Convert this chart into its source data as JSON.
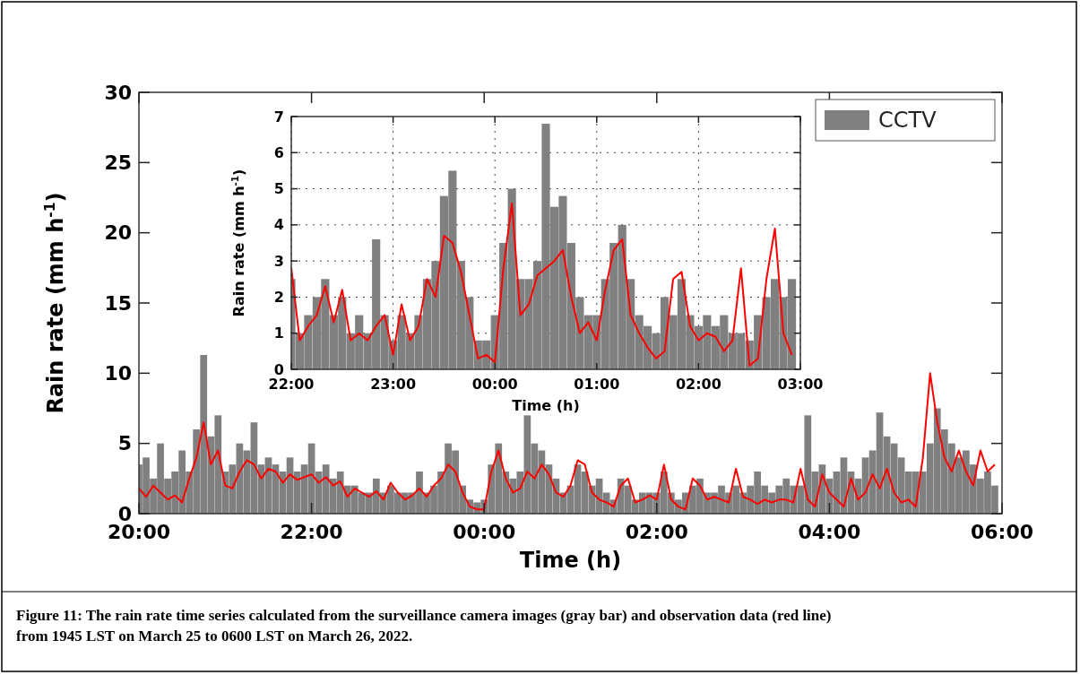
{
  "chart_data": [
    {
      "type": "bar",
      "xlabel": "Time (h)",
      "ylabel": "Rain rate (mm h$^{-1}$)",
      "xlim": [
        "2022-03-25T20:00",
        "2022-03-26T06:00"
      ],
      "ylim": [
        0,
        30
      ],
      "xticks": [
        {
          "value": "2022-03-25T20:00",
          "label": "20:00"
        },
        {
          "value": "2022-03-25T22:00",
          "label": "22:00"
        },
        {
          "value": "2022-03-26T00:00",
          "label": "00:00"
        },
        {
          "value": "2022-03-26T02:00",
          "label": "02:00"
        },
        {
          "value": "2022-03-26T04:00",
          "label": "04:00"
        },
        {
          "value": "2022-03-26T06:00",
          "label": "06:00"
        }
      ],
      "yticks": [
        0,
        5,
        10,
        15,
        20,
        25,
        30
      ],
      "legend": "top right",
      "annotations": [
        "Figure 11: The rain rate time series calculated from the surveillance camera images (gray bar) and observation data (red line) from 1945 LST on March 25 to 0600 LST on March 26, 2022."
      ],
      "x": [
        "2022-03-25T20:00",
        "2022-03-25T20:05",
        "2022-03-25T20:10",
        "2022-03-25T20:15",
        "2022-03-25T20:20",
        "2022-03-25T20:25",
        "2022-03-25T20:30",
        "2022-03-25T20:35",
        "2022-03-25T20:40",
        "2022-03-25T20:45",
        "2022-03-25T20:50",
        "2022-03-25T20:55",
        "2022-03-25T21:00",
        "2022-03-25T21:05",
        "2022-03-25T21:10",
        "2022-03-25T21:15",
        "2022-03-25T21:20",
        "2022-03-25T21:25",
        "2022-03-25T21:30",
        "2022-03-25T21:35",
        "2022-03-25T21:40",
        "2022-03-25T21:45",
        "2022-03-25T21:50",
        "2022-03-25T21:55",
        "2022-03-25T22:00",
        "2022-03-25T22:05",
        "2022-03-25T22:10",
        "2022-03-25T22:15",
        "2022-03-25T22:20",
        "2022-03-25T22:25",
        "2022-03-25T22:30",
        "2022-03-25T22:35",
        "2022-03-25T22:40",
        "2022-03-25T22:45",
        "2022-03-25T22:50",
        "2022-03-25T22:55",
        "2022-03-25T23:00",
        "2022-03-25T23:05",
        "2022-03-25T23:10",
        "2022-03-25T23:15",
        "2022-03-25T23:20",
        "2022-03-25T23:25",
        "2022-03-25T23:30",
        "2022-03-25T23:35",
        "2022-03-25T23:40",
        "2022-03-25T23:45",
        "2022-03-25T23:50",
        "2022-03-25T23:55",
        "2022-03-26T00:00",
        "2022-03-26T00:05",
        "2022-03-26T00:10",
        "2022-03-26T00:15",
        "2022-03-26T00:20",
        "2022-03-26T00:25",
        "2022-03-26T00:30",
        "2022-03-26T00:35",
        "2022-03-26T00:40",
        "2022-03-26T00:45",
        "2022-03-26T00:50",
        "2022-03-26T00:55",
        "2022-03-26T01:00",
        "2022-03-26T01:05",
        "2022-03-26T01:10",
        "2022-03-26T01:15",
        "2022-03-26T01:20",
        "2022-03-26T01:25",
        "2022-03-26T01:30",
        "2022-03-26T01:35",
        "2022-03-26T01:40",
        "2022-03-26T01:45",
        "2022-03-26T01:50",
        "2022-03-26T01:55",
        "2022-03-26T02:00",
        "2022-03-26T02:05",
        "2022-03-26T02:10",
        "2022-03-26T02:15",
        "2022-03-26T02:20",
        "2022-03-26T02:25",
        "2022-03-26T02:30",
        "2022-03-26T02:35",
        "2022-03-26T02:40",
        "2022-03-26T02:45",
        "2022-03-26T02:50",
        "2022-03-26T02:55",
        "2022-03-26T03:00",
        "2022-03-26T03:05",
        "2022-03-26T03:10",
        "2022-03-26T03:15",
        "2022-03-26T03:20",
        "2022-03-26T03:25",
        "2022-03-26T03:30",
        "2022-03-26T03:35",
        "2022-03-26T03:40",
        "2022-03-26T03:45",
        "2022-03-26T03:50",
        "2022-03-26T03:55",
        "2022-03-26T04:00",
        "2022-03-26T04:05",
        "2022-03-26T04:10",
        "2022-03-26T04:15",
        "2022-03-26T04:20",
        "2022-03-26T04:25",
        "2022-03-26T04:30",
        "2022-03-26T04:35",
        "2022-03-26T04:40",
        "2022-03-26T04:45",
        "2022-03-26T04:50",
        "2022-03-26T04:55",
        "2022-03-26T05:00",
        "2022-03-26T05:05",
        "2022-03-26T05:10",
        "2022-03-26T05:15",
        "2022-03-26T05:20",
        "2022-03-26T05:25",
        "2022-03-26T05:30",
        "2022-03-26T05:35",
        "2022-03-26T05:40",
        "2022-03-26T05:45",
        "2022-03-26T05:50",
        "2022-03-26T05:55"
      ],
      "series": [
        {
          "name": "CCTV",
          "color": "#808080",
          "values": [
            3.5,
            4.0,
            2.5,
            5.0,
            2.5,
            3.0,
            4.5,
            3.0,
            6.0,
            11.3,
            5.5,
            7.0,
            3.0,
            3.5,
            5.0,
            4.5,
            6.5,
            3.5,
            4.0,
            3.5,
            3.0,
            4.0,
            3.0,
            3.5,
            5.0,
            3.0,
            3.5,
            2.5,
            3.0,
            2.0,
            2.0,
            1.5,
            1.5,
            2.5,
            1.5,
            2.0,
            1.5,
            1.5,
            1.5,
            3.0,
            1.5,
            2.0,
            3.0,
            5.0,
            4.5,
            2.0,
            1.0,
            0.8,
            1.0,
            3.5,
            5.0,
            3.0,
            2.5,
            3.0,
            7.0,
            5.0,
            4.5,
            3.5,
            2.5,
            1.5,
            2.0,
            3.5,
            3.0,
            2.0,
            2.5,
            1.5,
            1.0,
            2.5,
            2.0,
            1.0,
            1.5,
            1.5,
            1.5,
            3.0,
            1.5,
            1.0,
            1.5,
            2.0,
            2.5,
            1.5,
            1.5,
            2.0,
            1.5,
            2.0,
            1.5,
            2.0,
            3.0,
            2.0,
            1.5,
            2.0,
            2.5,
            2.0,
            2.0,
            7.0,
            3.0,
            3.5,
            2.5,
            3.0,
            4.0,
            3.0,
            2.5,
            4.0,
            4.5,
            7.2,
            5.5,
            5.0,
            4.0,
            3.0,
            3.0,
            3.0,
            5.0,
            7.5,
            6.0,
            5.0,
            4.0,
            4.5,
            3.5,
            2.5,
            3.0,
            2.0
          ]
        },
        {
          "type": "line",
          "color": "#ff0000",
          "values": [
            1.8,
            1.2,
            2.0,
            1.5,
            1.0,
            1.3,
            0.8,
            2.5,
            4.0,
            6.5,
            3.5,
            4.5,
            2.0,
            1.8,
            3.0,
            3.8,
            3.5,
            2.5,
            3.2,
            3.0,
            2.2,
            2.8,
            2.4,
            2.6,
            2.8,
            2.2,
            2.6,
            2.0,
            2.3,
            1.2,
            1.8,
            1.5,
            1.2,
            1.6,
            1.0,
            2.2,
            1.5,
            1.0,
            1.3,
            1.8,
            1.2,
            2.0,
            2.5,
            3.5,
            3.0,
            1.5,
            0.5,
            0.3,
            0.3,
            3.0,
            4.5,
            2.5,
            1.5,
            1.8,
            3.0,
            2.5,
            3.5,
            2.8,
            1.5,
            1.2,
            2.0,
            3.8,
            3.5,
            1.5,
            1.0,
            0.8,
            0.5,
            2.0,
            2.5,
            0.8,
            1.0,
            1.3,
            1.0,
            3.5,
            1.0,
            0.5,
            0.3,
            2.5,
            2.0,
            1.0,
            1.2,
            1.0,
            0.8,
            3.2,
            1.2,
            1.0,
            0.7,
            1.0,
            0.8,
            1.0,
            1.0,
            0.8,
            3.2,
            1.0,
            0.5,
            2.8,
            1.5,
            1.0,
            0.5,
            2.5,
            1.0,
            1.5,
            2.8,
            1.8,
            3.2,
            1.5,
            0.8,
            1.0,
            0.5,
            4.0,
            10.0,
            6.5,
            4.0,
            3.0,
            4.5,
            3.0,
            2.0,
            4.5,
            3.0,
            3.5
          ]
        }
      ]
    },
    {
      "type": "bar",
      "xlabel": "Time (h)",
      "ylabel": "Rain rate (mm h$^{-1}$)",
      "xlim": [
        "2022-03-25T22:00",
        "2022-03-26T03:00"
      ],
      "ylim": [
        0,
        7
      ],
      "xticks": [
        {
          "value": "2022-03-25T22:00",
          "label": "22:00"
        },
        {
          "value": "2022-03-25T23:00",
          "label": "23:00"
        },
        {
          "value": "2022-03-26T00:00",
          "label": "00:00"
        },
        {
          "value": "2022-03-26T01:00",
          "label": "01:00"
        },
        {
          "value": "2022-03-26T02:00",
          "label": "02:00"
        },
        {
          "value": "2022-03-26T03:00",
          "label": "03:00"
        }
      ],
      "yticks": [
        0,
        1,
        2,
        3,
        4,
        5,
        6,
        7
      ],
      "grid": true,
      "x": [
        "2022-03-25T22:00",
        "2022-03-25T22:05",
        "2022-03-25T22:10",
        "2022-03-25T22:15",
        "2022-03-25T22:20",
        "2022-03-25T22:25",
        "2022-03-25T22:30",
        "2022-03-25T22:35",
        "2022-03-25T22:40",
        "2022-03-25T22:45",
        "2022-03-25T22:50",
        "2022-03-25T22:55",
        "2022-03-25T23:00",
        "2022-03-25T23:05",
        "2022-03-25T23:10",
        "2022-03-25T23:15",
        "2022-03-25T23:20",
        "2022-03-25T23:25",
        "2022-03-25T23:30",
        "2022-03-25T23:35",
        "2022-03-25T23:40",
        "2022-03-25T23:45",
        "2022-03-25T23:50",
        "2022-03-25T23:55",
        "2022-03-26T00:00",
        "2022-03-26T00:05",
        "2022-03-26T00:10",
        "2022-03-26T00:15",
        "2022-03-26T00:20",
        "2022-03-26T00:25",
        "2022-03-26T00:30",
        "2022-03-26T00:35",
        "2022-03-26T00:40",
        "2022-03-26T00:45",
        "2022-03-26T00:50",
        "2022-03-26T00:55",
        "2022-03-26T01:00",
        "2022-03-26T01:05",
        "2022-03-26T01:10",
        "2022-03-26T01:15",
        "2022-03-26T01:20",
        "2022-03-26T01:25",
        "2022-03-26T01:30",
        "2022-03-26T01:35",
        "2022-03-26T01:40",
        "2022-03-26T01:45",
        "2022-03-26T01:50",
        "2022-03-26T01:55",
        "2022-03-26T02:00",
        "2022-03-26T02:05",
        "2022-03-26T02:10",
        "2022-03-26T02:15",
        "2022-03-26T02:20",
        "2022-03-26T02:25",
        "2022-03-26T02:30",
        "2022-03-26T02:35",
        "2022-03-26T02:40",
        "2022-03-26T02:45",
        "2022-03-26T02:50",
        "2022-03-26T02:55"
      ],
      "series": [
        {
          "color": "#808080",
          "values": [
            2.5,
            1.0,
            1.5,
            2.0,
            2.5,
            1.5,
            2.0,
            1.0,
            1.5,
            1.0,
            3.6,
            1.5,
            0.8,
            1.5,
            1.0,
            1.5,
            2.5,
            3.0,
            4.8,
            5.5,
            3.0,
            2.0,
            0.8,
            0.8,
            1.5,
            3.5,
            5.0,
            2.5,
            2.5,
            3.0,
            6.8,
            4.5,
            4.8,
            3.5,
            2.0,
            1.5,
            1.5,
            2.5,
            3.5,
            4.0,
            2.5,
            1.5,
            1.2,
            1.0,
            2.0,
            1.5,
            2.5,
            1.5,
            1.2,
            1.5,
            1.2,
            1.5,
            1.0,
            1.0,
            0.8,
            1.5,
            2.0,
            2.5,
            2.0,
            2.5
          ]
        },
        {
          "type": "line",
          "color": "#ff0000",
          "values": [
            2.8,
            0.8,
            1.2,
            1.5,
            2.3,
            1.3,
            2.2,
            0.8,
            1.0,
            0.8,
            1.2,
            1.5,
            0.4,
            1.8,
            0.8,
            1.2,
            2.5,
            2.0,
            3.7,
            3.5,
            2.7,
            1.5,
            0.3,
            0.4,
            0.2,
            2.8,
            4.6,
            1.5,
            1.8,
            2.6,
            2.8,
            3.0,
            3.3,
            2.0,
            1.0,
            1.3,
            0.8,
            2.2,
            3.3,
            3.6,
            1.5,
            1.0,
            0.6,
            0.3,
            0.5,
            2.5,
            2.7,
            1.2,
            0.8,
            1.0,
            0.9,
            0.5,
            0.8,
            2.8,
            0.1,
            0.3,
            2.5,
            3.9,
            1.0,
            0.4
          ]
        }
      ]
    }
  ]
}
